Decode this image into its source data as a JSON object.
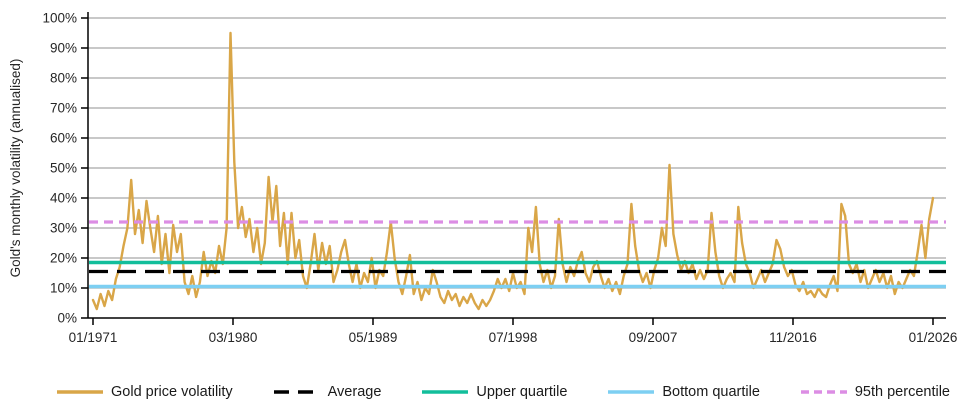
{
  "chart_data": {
    "type": "line",
    "ylabel": "Gold's monthly volatility (annualised)",
    "ylim": [
      0,
      100
    ],
    "grid": "horizontal",
    "legend_position": "bottom",
    "colors": {
      "grid": "#A6A6A6",
      "axis": "#000000",
      "tick_text": "#262626"
    },
    "y_ticks": [
      {
        "value": 0,
        "label": "0%"
      },
      {
        "value": 10,
        "label": "10%"
      },
      {
        "value": 20,
        "label": "20%"
      },
      {
        "value": 30,
        "label": "30%"
      },
      {
        "value": 40,
        "label": "40%"
      },
      {
        "value": 50,
        "label": "50%"
      },
      {
        "value": 60,
        "label": "60%"
      },
      {
        "value": 70,
        "label": "70%"
      },
      {
        "value": 80,
        "label": "80%"
      },
      {
        "value": 90,
        "label": "90%"
      },
      {
        "value": 100,
        "label": "100%"
      }
    ],
    "x_domain_months": [
      0,
      660
    ],
    "x_ticks": [
      {
        "month": 0,
        "label": "01/1971"
      },
      {
        "month": 110,
        "label": "03/1980"
      },
      {
        "month": 220,
        "label": "05/1989"
      },
      {
        "month": 330,
        "label": "07/1998"
      },
      {
        "month": 440,
        "label": "09/2007"
      },
      {
        "month": 550,
        "label": "11/2016"
      },
      {
        "month": 660,
        "label": "01/2026"
      }
    ],
    "series": [
      {
        "name": "Gold price volatility",
        "type": "line",
        "color": "#D9A648",
        "dash": "solid",
        "unit": "%",
        "start_month": 0,
        "interval_months": 3,
        "values": [
          6,
          3,
          8,
          4,
          9,
          6,
          13,
          17,
          24,
          30,
          46,
          28,
          36,
          25,
          39,
          30,
          22,
          34,
          18,
          28,
          15,
          31,
          22,
          28,
          12,
          8,
          14,
          7,
          12,
          22,
          14,
          19,
          15,
          24,
          18,
          30,
          95,
          52,
          30,
          37,
          27,
          33,
          22,
          30,
          18,
          25,
          47,
          32,
          44,
          24,
          35,
          18,
          35,
          20,
          26,
          14,
          10,
          18,
          28,
          16,
          25,
          18,
          24,
          12,
          16,
          22,
          26,
          18,
          12,
          18,
          10,
          15,
          12,
          20,
          10,
          16,
          14,
          22,
          32,
          20,
          12,
          8,
          14,
          21,
          8,
          12,
          6,
          10,
          8,
          16,
          12,
          7,
          5,
          9,
          6,
          8,
          4,
          7,
          5,
          8,
          5,
          3,
          6,
          4,
          6,
          9,
          13,
          10,
          13,
          9,
          15,
          10,
          12,
          8,
          30,
          22,
          37,
          18,
          12,
          16,
          10,
          14,
          33,
          18,
          12,
          17,
          14,
          19,
          22,
          15,
          12,
          17,
          19,
          14,
          10,
          13,
          9,
          12,
          8,
          14,
          18,
          38,
          24,
          16,
          12,
          15,
          10,
          16,
          20,
          30,
          24,
          51,
          28,
          21,
          16,
          19,
          15,
          18,
          13,
          16,
          13,
          16,
          35,
          22,
          14,
          10,
          13,
          15,
          12,
          37,
          25,
          18,
          15,
          10,
          13,
          16,
          12,
          15,
          18,
          26,
          23,
          17,
          14,
          16,
          11,
          9,
          12,
          8,
          9,
          7,
          10,
          8,
          7,
          11,
          14,
          9,
          38,
          34,
          18,
          15,
          18,
          12,
          16,
          10,
          13,
          16,
          12,
          15,
          10,
          14,
          8,
          12,
          10,
          13,
          16,
          14,
          22,
          31,
          20,
          33,
          40
        ]
      },
      {
        "name": "Average",
        "type": "hline",
        "color": "#000000",
        "dash": "long-dash",
        "value": 15.5
      },
      {
        "name": "Upper quartile",
        "type": "hline",
        "color": "#12BE9B",
        "dash": "solid",
        "value": 18.5
      },
      {
        "name": "Bottom quartile",
        "type": "hline",
        "color": "#7DCFF2",
        "dash": "solid",
        "value": 10.5
      },
      {
        "name": "95th percentile",
        "type": "hline",
        "color": "#DC8DE4",
        "dash": "short-dash",
        "value": 32
      }
    ]
  }
}
